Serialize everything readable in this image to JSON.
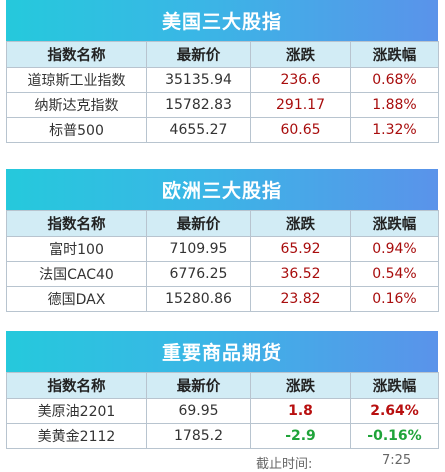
{
  "sections": [
    {
      "title": "美国三大股指",
      "headers": [
        "指数名称",
        "最新价",
        "涨跌",
        "涨跌幅"
      ],
      "rows": [
        {
          "name": "道琼斯工业指数",
          "price": "35135.94",
          "change": "236.6",
          "pct": "0.68%"
        },
        {
          "name": "纳斯达克指数",
          "price": "15782.83",
          "change": "291.17",
          "pct": "1.88%"
        },
        {
          "name": "标普500",
          "price": "4655.27",
          "change": "60.65",
          "pct": "1.32%"
        }
      ]
    },
    {
      "title": "欧洲三大股指",
      "headers": [
        "指数名称",
        "最新价",
        "涨跌",
        "涨跌幅"
      ],
      "rows": [
        {
          "name": "富时100",
          "price": "7109.95",
          "change": "65.92",
          "pct": "0.94%"
        },
        {
          "name": "法国CAC40",
          "price": "6776.25",
          "change": "36.52",
          "pct": "0.54%"
        },
        {
          "name": "德国DAX",
          "price": "15280.86",
          "change": "23.82",
          "pct": "0.16%"
        }
      ]
    },
    {
      "title": "重要商品期货",
      "headers": [
        "指数名称",
        "最新价",
        "涨跌",
        "涨跌幅"
      ],
      "rows": [
        {
          "name": "美原油2201",
          "price": "69.95",
          "change": "1.8",
          "pct": "2.64%"
        },
        {
          "name": "美黄金2112",
          "price": "1785.2",
          "change": "-2.9",
          "pct": "-0.16%"
        }
      ]
    }
  ],
  "footer": {
    "label": "截止时间:",
    "time": "7:25"
  },
  "colors": {
    "rise": "#a80d0d",
    "fall": "#1fa339",
    "banner_start": "#25c9dc",
    "banner_end": "#5a93ea",
    "header_bg": "#d2ecf5"
  }
}
